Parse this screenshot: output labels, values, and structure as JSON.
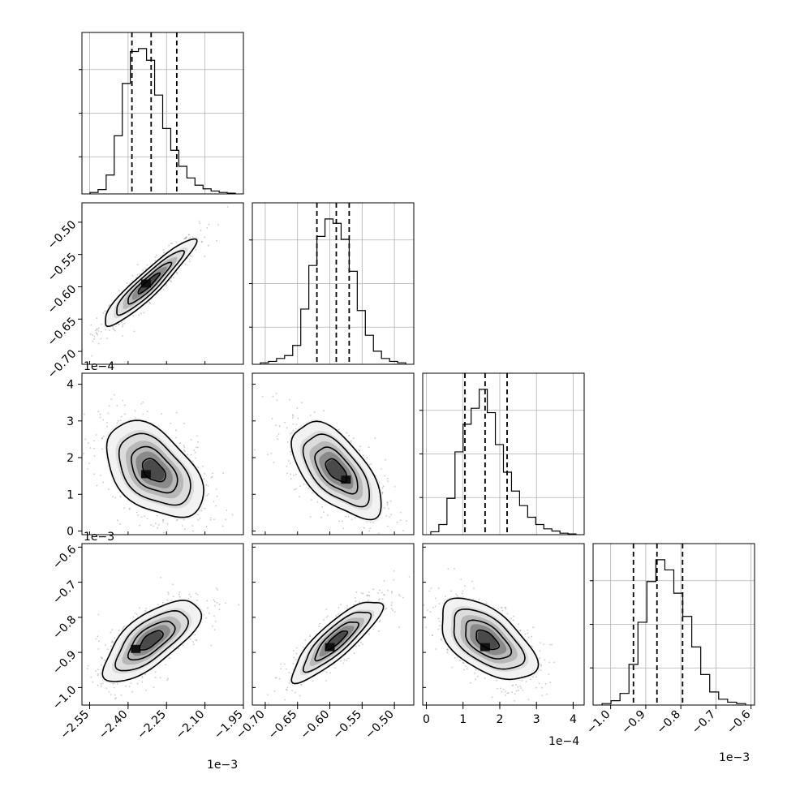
{
  "chart_data": {
    "type": "corner",
    "title": "",
    "grid": true,
    "parameters": [
      {
        "index": 0,
        "range": [
          -2.58,
          -1.95
        ],
        "ticks": [
          -2.55,
          -2.4,
          -2.25,
          -2.1,
          -1.95
        ],
        "tick_labels": [
          "−2.55",
          "−2.40",
          "−2.25",
          "−2.10",
          "−1.95"
        ],
        "offset": "1e−3",
        "quantiles": [
          -2.385,
          -2.31,
          -2.21
        ],
        "hist": [
          0.01,
          0.03,
          0.13,
          0.4,
          0.76,
          0.98,
          1.0,
          0.92,
          0.68,
          0.45,
          0.3,
          0.19,
          0.11,
          0.06,
          0.035,
          0.02,
          0.01,
          0.005
        ]
      },
      {
        "index": 1,
        "range": [
          -0.72,
          -0.47
        ],
        "ticks": [
          -0.7,
          -0.65,
          -0.6,
          -0.55,
          -0.5
        ],
        "tick_labels": [
          "−0.70",
          "−0.65",
          "−0.60",
          "−0.55",
          "−0.50"
        ],
        "offset": "",
        "quantiles": [
          -0.62,
          -0.59,
          -0.57
        ],
        "hist": [
          0.01,
          0.02,
          0.04,
          0.06,
          0.13,
          0.38,
          0.68,
          0.88,
          1.0,
          0.97,
          0.86,
          0.64,
          0.37,
          0.2,
          0.09,
          0.04,
          0.02,
          0.01
        ]
      },
      {
        "index": 2,
        "range": [
          -0.1,
          4.3
        ],
        "ticks": [
          0,
          1,
          2,
          3,
          4
        ],
        "tick_labels": [
          "0",
          "1",
          "2",
          "3",
          "4"
        ],
        "offset": "1e−4",
        "quantiles": [
          1.05,
          1.6,
          2.2
        ],
        "hist": [
          0.02,
          0.07,
          0.25,
          0.57,
          0.76,
          0.87,
          1.0,
          0.84,
          0.62,
          0.43,
          0.3,
          0.2,
          0.12,
          0.07,
          0.04,
          0.025,
          0.01,
          0.005
        ]
      },
      {
        "index": 3,
        "range": [
          -1.05,
          -0.59
        ],
        "ticks": [
          -1.0,
          -0.9,
          -0.8,
          -0.7,
          -0.6
        ],
        "tick_labels": [
          "−1.0",
          "−0.9",
          "−0.8",
          "−0.7",
          "−0.6"
        ],
        "offset": "1e−3",
        "quantiles": [
          -0.935,
          -0.868,
          -0.795
        ],
        "hist": [
          0.01,
          0.03,
          0.08,
          0.28,
          0.57,
          0.85,
          1.0,
          0.93,
          0.77,
          0.61,
          0.4,
          0.21,
          0.09,
          0.04,
          0.02,
          0.01
        ]
      }
    ],
    "pairs": [
      {
        "x": 0,
        "y": 1,
        "mean": [
          -2.32,
          -0.595
        ],
        "sd": [
          0.085,
          0.032
        ],
        "corr": 0.93,
        "mode": [
          -2.33,
          -0.595
        ]
      },
      {
        "x": 0,
        "y": 2,
        "mean": [
          -2.3,
          1.65
        ],
        "sd": [
          0.09,
          0.62
        ],
        "corr": -0.45,
        "mode": [
          -2.33,
          1.55
        ]
      },
      {
        "x": 1,
        "y": 2,
        "mean": [
          -0.59,
          1.65
        ],
        "sd": [
          0.033,
          0.62
        ],
        "corr": -0.6,
        "mode": [
          -0.575,
          1.4
        ]
      },
      {
        "x": 0,
        "y": 3,
        "mean": [
          -2.31,
          -0.865
        ],
        "sd": [
          0.09,
          0.055
        ],
        "corr": 0.7,
        "mode": [
          -2.37,
          -0.89
        ]
      },
      {
        "x": 1,
        "y": 3,
        "mean": [
          -0.59,
          -0.865
        ],
        "sd": [
          0.033,
          0.055
        ],
        "corr": 0.85,
        "mode": [
          -0.6,
          -0.885
        ]
      },
      {
        "x": 2,
        "y": 3,
        "mean": [
          1.65,
          -0.865
        ],
        "sd": [
          0.62,
          0.055
        ],
        "corr": -0.55,
        "mode": [
          1.6,
          -0.885
        ]
      }
    ]
  }
}
